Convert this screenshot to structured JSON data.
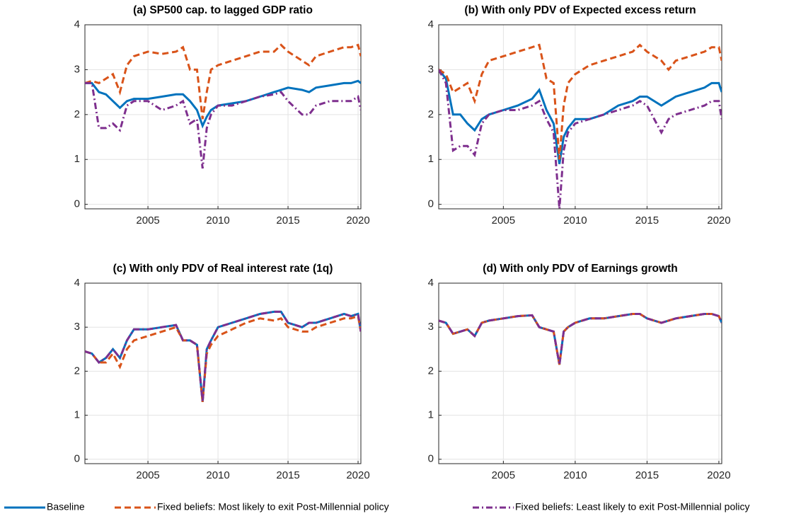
{
  "chart_data": [
    {
      "type": "line",
      "title": "(a) SP500 cap. to lagged GDP ratio",
      "x": [
        2000.5,
        2001,
        2001.5,
        2002,
        2002.5,
        2003,
        2003.5,
        2004,
        2005,
        2006,
        2007,
        2007.5,
        2008,
        2008.5,
        2008.9,
        2009.2,
        2009.5,
        2010,
        2011,
        2012,
        2013,
        2014,
        2014.5,
        2015,
        2016,
        2016.5,
        2017,
        2018,
        2019,
        2019.5,
        2020,
        2020.2
      ],
      "xlim": [
        2000.5,
        2020.2
      ],
      "xticks": [
        2005,
        2010,
        2015,
        2020
      ],
      "ylim": [
        -0.1,
        4
      ],
      "yticks": [
        0,
        1,
        2,
        3,
        4
      ],
      "grid": true,
      "series": [
        {
          "name": "Baseline",
          "color": "#0072bd",
          "style": "solid",
          "values": [
            2.7,
            2.7,
            2.5,
            2.45,
            2.3,
            2.15,
            2.3,
            2.35,
            2.35,
            2.4,
            2.45,
            2.45,
            2.3,
            2.1,
            1.75,
            1.95,
            2.1,
            2.2,
            2.25,
            2.3,
            2.4,
            2.5,
            2.55,
            2.6,
            2.55,
            2.5,
            2.6,
            2.65,
            2.7,
            2.7,
            2.75,
            2.7
          ]
        },
        {
          "name": "Fixed beliefs: Most likely to exit Post-Millennial policy",
          "color": "#d95319",
          "style": "dashed",
          "values": [
            2.7,
            2.75,
            2.7,
            2.8,
            2.9,
            2.5,
            3.1,
            3.3,
            3.4,
            3.35,
            3.4,
            3.5,
            3.0,
            3.0,
            1.9,
            2.5,
            3.0,
            3.1,
            3.2,
            3.3,
            3.4,
            3.4,
            3.55,
            3.4,
            3.2,
            3.1,
            3.3,
            3.4,
            3.5,
            3.5,
            3.55,
            3.3
          ]
        },
        {
          "name": "Fixed beliefs: Least likely to exit Post-Millennial policy",
          "color": "#7e2f8e",
          "style": "dashdot",
          "values": [
            2.7,
            2.7,
            1.7,
            1.7,
            1.8,
            1.65,
            2.2,
            2.3,
            2.3,
            2.1,
            2.2,
            2.3,
            1.8,
            1.9,
            0.8,
            1.7,
            2.0,
            2.2,
            2.2,
            2.3,
            2.4,
            2.45,
            2.5,
            2.3,
            2.0,
            2.0,
            2.2,
            2.3,
            2.3,
            2.3,
            2.4,
            2.1
          ]
        }
      ]
    },
    {
      "type": "line",
      "title": "(b) With only PDV of Expected excess return",
      "x": [
        2000.5,
        2001,
        2001.5,
        2002,
        2002.5,
        2003,
        2003.5,
        2004,
        2005,
        2006,
        2007,
        2007.5,
        2008,
        2008.5,
        2008.9,
        2009.2,
        2009.5,
        2010,
        2011,
        2012,
        2013,
        2014,
        2014.5,
        2015,
        2016,
        2016.5,
        2017,
        2018,
        2019,
        2019.5,
        2020,
        2020.2
      ],
      "xlim": [
        2000.5,
        2020.2
      ],
      "xticks": [
        2005,
        2010,
        2015,
        2020
      ],
      "ylim": [
        -0.1,
        4
      ],
      "yticks": [
        0,
        1,
        2,
        3,
        4
      ],
      "grid": true,
      "series": [
        {
          "color": "#0072bd",
          "style": "solid",
          "values": [
            3.0,
            2.8,
            2.0,
            2.0,
            1.8,
            1.65,
            1.9,
            2.0,
            2.1,
            2.2,
            2.35,
            2.55,
            2.1,
            1.8,
            0.9,
            1.5,
            1.7,
            1.9,
            1.9,
            2.0,
            2.2,
            2.3,
            2.4,
            2.4,
            2.2,
            2.3,
            2.4,
            2.5,
            2.6,
            2.7,
            2.7,
            2.5
          ]
        },
        {
          "color": "#d95319",
          "style": "dashed",
          "values": [
            3.0,
            2.9,
            2.5,
            2.6,
            2.7,
            2.3,
            2.9,
            3.2,
            3.3,
            3.4,
            3.5,
            3.55,
            2.8,
            2.7,
            1.0,
            2.2,
            2.7,
            2.9,
            3.1,
            3.2,
            3.3,
            3.4,
            3.55,
            3.4,
            3.2,
            3.0,
            3.2,
            3.3,
            3.4,
            3.5,
            3.5,
            3.2
          ]
        },
        {
          "color": "#7e2f8e",
          "style": "dashdot",
          "values": [
            3.0,
            2.7,
            1.2,
            1.3,
            1.3,
            1.1,
            1.8,
            2.0,
            2.1,
            2.1,
            2.2,
            2.3,
            1.9,
            1.6,
            -0.1,
            1.2,
            1.6,
            1.8,
            1.9,
            2.0,
            2.1,
            2.2,
            2.3,
            2.2,
            1.6,
            1.9,
            2.0,
            2.1,
            2.2,
            2.3,
            2.3,
            1.9
          ]
        }
      ]
    },
    {
      "type": "line",
      "title": "(c) With only PDV of Real interest rate (1q)",
      "x": [
        2000.5,
        2001,
        2001.5,
        2002,
        2002.5,
        2003,
        2003.5,
        2004,
        2005,
        2006,
        2007,
        2007.5,
        2008,
        2008.5,
        2008.9,
        2009.2,
        2009.5,
        2010,
        2011,
        2012,
        2013,
        2014,
        2014.5,
        2015,
        2016,
        2016.5,
        2017,
        2018,
        2019,
        2019.5,
        2020,
        2020.2
      ],
      "xlim": [
        2000.5,
        2020.2
      ],
      "xticks": [
        2005,
        2010,
        2015,
        2020
      ],
      "ylim": [
        -0.1,
        4
      ],
      "yticks": [
        0,
        1,
        2,
        3,
        4
      ],
      "grid": true,
      "series": [
        {
          "color": "#0072bd",
          "style": "solid",
          "values": [
            2.45,
            2.4,
            2.2,
            2.3,
            2.5,
            2.3,
            2.7,
            2.95,
            2.95,
            3.0,
            3.05,
            2.7,
            2.7,
            2.6,
            1.3,
            2.5,
            2.7,
            3.0,
            3.1,
            3.2,
            3.3,
            3.35,
            3.35,
            3.1,
            3.0,
            3.1,
            3.1,
            3.2,
            3.3,
            3.25,
            3.3,
            2.9
          ]
        },
        {
          "color": "#d95319",
          "style": "dashed",
          "values": [
            2.45,
            2.4,
            2.2,
            2.2,
            2.4,
            2.1,
            2.5,
            2.7,
            2.8,
            2.9,
            3.0,
            2.7,
            2.7,
            2.6,
            1.3,
            2.4,
            2.6,
            2.8,
            2.95,
            3.1,
            3.2,
            3.15,
            3.2,
            3.0,
            2.9,
            2.9,
            3.0,
            3.1,
            3.2,
            3.2,
            3.25,
            2.9
          ]
        },
        {
          "color": "#7e2f8e",
          "style": "dashdot",
          "values": [
            2.45,
            2.4,
            2.2,
            2.3,
            2.5,
            2.3,
            2.7,
            2.95,
            2.95,
            3.0,
            3.05,
            2.7,
            2.7,
            2.6,
            1.3,
            2.5,
            2.7,
            3.0,
            3.1,
            3.2,
            3.3,
            3.35,
            3.35,
            3.1,
            3.0,
            3.1,
            3.1,
            3.2,
            3.3,
            3.25,
            3.3,
            2.9
          ]
        }
      ]
    },
    {
      "type": "line",
      "title": "(d) With only PDV of Earnings growth",
      "x": [
        2000.5,
        2001,
        2001.5,
        2002,
        2002.5,
        2003,
        2003.5,
        2004,
        2005,
        2006,
        2007,
        2007.5,
        2008,
        2008.5,
        2008.9,
        2009.2,
        2009.5,
        2010,
        2011,
        2012,
        2013,
        2014,
        2014.5,
        2015,
        2016,
        2016.5,
        2017,
        2018,
        2019,
        2019.5,
        2020,
        2020.2
      ],
      "xlim": [
        2000.5,
        2020.2
      ],
      "xticks": [
        2005,
        2010,
        2015,
        2020
      ],
      "ylim": [
        -0.1,
        4
      ],
      "yticks": [
        0,
        1,
        2,
        3,
        4
      ],
      "grid": true,
      "series": [
        {
          "color": "#0072bd",
          "style": "solid",
          "values": [
            3.15,
            3.1,
            2.85,
            2.9,
            2.95,
            2.8,
            3.1,
            3.15,
            3.2,
            3.25,
            3.27,
            3.0,
            2.95,
            2.9,
            2.15,
            2.9,
            3.0,
            3.1,
            3.2,
            3.2,
            3.25,
            3.3,
            3.3,
            3.2,
            3.1,
            3.15,
            3.2,
            3.25,
            3.3,
            3.3,
            3.25,
            3.1
          ]
        },
        {
          "color": "#d95319",
          "style": "dashed",
          "values": [
            3.15,
            3.1,
            2.85,
            2.9,
            2.95,
            2.8,
            3.1,
            3.15,
            3.2,
            3.25,
            3.27,
            3.0,
            2.95,
            2.9,
            2.15,
            2.9,
            3.0,
            3.1,
            3.2,
            3.2,
            3.25,
            3.3,
            3.3,
            3.2,
            3.1,
            3.15,
            3.2,
            3.25,
            3.3,
            3.3,
            3.25,
            3.1
          ]
        },
        {
          "color": "#7e2f8e",
          "style": "dashdot",
          "values": [
            3.15,
            3.1,
            2.85,
            2.9,
            2.95,
            2.8,
            3.1,
            3.15,
            3.2,
            3.25,
            3.27,
            3.0,
            2.95,
            2.9,
            2.15,
            2.9,
            3.0,
            3.1,
            3.2,
            3.2,
            3.25,
            3.3,
            3.3,
            3.2,
            3.1,
            3.15,
            3.2,
            3.25,
            3.3,
            3.3,
            3.25,
            3.1
          ]
        }
      ]
    }
  ]
}
